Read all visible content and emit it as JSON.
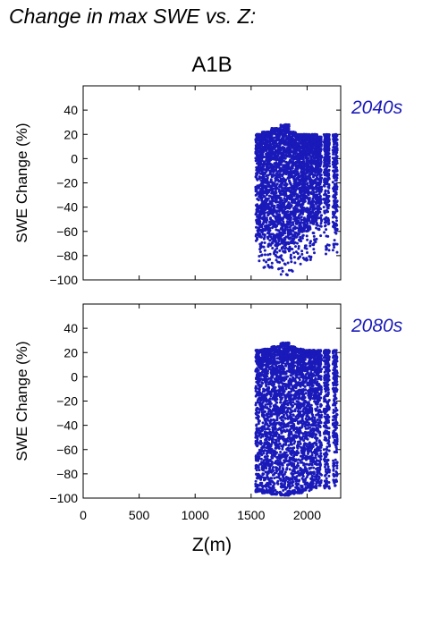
{
  "figure": {
    "title": "Change in max SWE vs. Z:",
    "scenario": "A1B",
    "xlabel": "Z(m)"
  },
  "chart_data": [
    {
      "type": "scatter",
      "period": "2040s",
      "ylabel": "SWE Change (%)",
      "xlim": [
        0,
        2300
      ],
      "ylim": [
        -100,
        60
      ],
      "xticks": [
        0,
        500,
        1000,
        1500,
        2000
      ],
      "yticks": [
        -100,
        -80,
        -60,
        -40,
        -20,
        0,
        20,
        40
      ],
      "grid": false,
      "color": "#1a1aba",
      "series": [
        {
          "bands": [
            {
              "x": [
                1540,
                1600
              ],
              "y": [
                -65,
                20
              ],
              "tail": -85
            },
            {
              "x": [
                1600,
                1680
              ],
              "y": [
                -70,
                22
              ],
              "tail": -90
            },
            {
              "x": [
                1680,
                1760
              ],
              "y": [
                -72,
                25
              ],
              "tail": -93
            },
            {
              "x": [
                1760,
                1840
              ],
              "y": [
                -75,
                28
              ],
              "tail": -96
            },
            {
              "x": [
                1840,
                1900
              ],
              "y": [
                -70,
                22
              ],
              "tail": -93
            },
            {
              "x": [
                1900,
                1970
              ],
              "y": [
                -65,
                20
              ],
              "tail": -88
            },
            {
              "x": [
                1970,
                2040
              ],
              "y": [
                -60,
                20
              ],
              "tail": -85
            },
            {
              "x": [
                2040,
                2090
              ],
              "y": [
                -55,
                20
              ],
              "tail": -80
            },
            {
              "x": [
                2090,
                2130
              ],
              "y": [
                -50,
                18
              ],
              "tail": -65
            },
            {
              "x": [
                2150,
                2200
              ],
              "y": [
                -55,
                20
              ],
              "tail": -80
            },
            {
              "x": [
                2230,
                2270
              ],
              "y": [
                -60,
                20
              ],
              "tail": -82
            }
          ]
        }
      ]
    },
    {
      "type": "scatter",
      "period": "2080s",
      "ylabel": "SWE Change (%)",
      "xlim": [
        0,
        2300
      ],
      "ylim": [
        -100,
        60
      ],
      "xticks": [
        0,
        500,
        1000,
        1500,
        2000
      ],
      "yticks": [
        -100,
        -80,
        -60,
        -40,
        -20,
        0,
        20,
        40
      ],
      "grid": false,
      "color": "#1a1aba",
      "series": [
        {
          "bands": [
            {
              "x": [
                1540,
                1600
              ],
              "y": [
                -93,
                22
              ],
              "tail": -95
            },
            {
              "x": [
                1600,
                1680
              ],
              "y": [
                -93,
                23
              ],
              "tail": -96
            },
            {
              "x": [
                1680,
                1760
              ],
              "y": [
                -95,
                25
              ],
              "tail": -97
            },
            {
              "x": [
                1760,
                1840
              ],
              "y": [
                -96,
                28
              ],
              "tail": -98
            },
            {
              "x": [
                1840,
                1900
              ],
              "y": [
                -95,
                25
              ],
              "tail": -97
            },
            {
              "x": [
                1900,
                1970
              ],
              "y": [
                -93,
                23
              ],
              "tail": -96
            },
            {
              "x": [
                1970,
                2040
              ],
              "y": [
                -90,
                22
              ],
              "tail": -94
            },
            {
              "x": [
                2040,
                2090
              ],
              "y": [
                -88,
                22
              ],
              "tail": -92
            },
            {
              "x": [
                2090,
                2130
              ],
              "y": [
                -85,
                22
              ],
              "tail": -90
            },
            {
              "x": [
                2150,
                2200
              ],
              "y": [
                -88,
                22
              ],
              "tail": -92
            },
            {
              "x": [
                2230,
                2270
              ],
              "y": [
                -85,
                22
              ],
              "tail": -90
            }
          ]
        }
      ]
    }
  ]
}
